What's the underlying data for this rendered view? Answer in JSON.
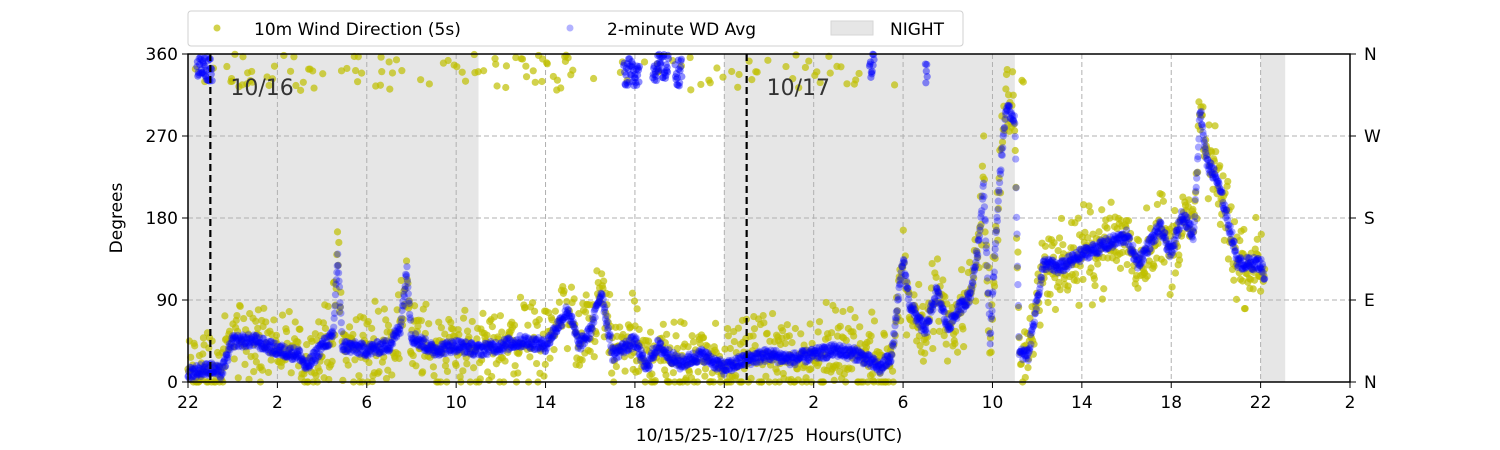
{
  "chart_data": {
    "type": "scatter",
    "xlabel": "10/15/25-10/17/25  Hours(UTC)",
    "ylabel": "Degrees",
    "x_units": "hours since 10/15 22:00 UTC",
    "xlim": [
      0,
      52
    ],
    "ylim": [
      0,
      360
    ],
    "x_ticks": [
      {
        "h": 0,
        "label": "22"
      },
      {
        "h": 4,
        "label": "2"
      },
      {
        "h": 8,
        "label": "6"
      },
      {
        "h": 12,
        "label": "10"
      },
      {
        "h": 16,
        "label": "14"
      },
      {
        "h": 20,
        "label": "18"
      },
      {
        "h": 24,
        "label": "22"
      },
      {
        "h": 28,
        "label": "2"
      },
      {
        "h": 32,
        "label": "6"
      },
      {
        "h": 36,
        "label": "10"
      },
      {
        "h": 40,
        "label": "14"
      },
      {
        "h": 44,
        "label": "18"
      },
      {
        "h": 48,
        "label": "22"
      },
      {
        "h": 52,
        "label": "2"
      }
    ],
    "y_ticks": [
      {
        "v": 0,
        "label": "0"
      },
      {
        "v": 90,
        "label": "90"
      },
      {
        "v": 180,
        "label": "180"
      },
      {
        "v": 270,
        "label": "270"
      },
      {
        "v": 360,
        "label": "360"
      }
    ],
    "y2_ticks": [
      {
        "v": 0,
        "label": "N"
      },
      {
        "v": 90,
        "label": "E"
      },
      {
        "v": 180,
        "label": "S"
      },
      {
        "v": 270,
        "label": "W"
      },
      {
        "v": 360,
        "label": "N"
      }
    ],
    "grid": true,
    "legend": {
      "placement": "top",
      "entries": [
        {
          "label": "10m Wind Direction (5s)",
          "color": "#bfbf00"
        },
        {
          "label": "2-minute WD Avg",
          "color": "#0000ff"
        },
        {
          "label": "NIGHT",
          "color": "#e6e6e6"
        }
      ]
    },
    "night_periods": [
      [
        0,
        13
      ],
      [
        24,
        37
      ],
      [
        48,
        49.1
      ]
    ],
    "date_markers": [
      {
        "h": 1,
        "label": "10/16"
      },
      {
        "h": 25,
        "label": "10/17"
      }
    ],
    "scatter_spread_deg": 28,
    "series": [
      {
        "name": "2-minute WD Avg",
        "trend": [
          [
            0,
            10
          ],
          [
            1,
            15
          ],
          [
            1.5,
            10
          ],
          [
            2,
            45
          ],
          [
            3,
            45
          ],
          [
            4,
            35
          ],
          [
            5,
            30
          ],
          [
            5.3,
            15
          ],
          [
            6,
            40
          ],
          [
            6.5,
            50
          ],
          [
            6.7,
            140
          ],
          [
            6.9,
            40
          ],
          [
            8,
            35
          ],
          [
            9,
            40
          ],
          [
            9.5,
            60
          ],
          [
            9.8,
            125
          ],
          [
            10,
            50
          ],
          [
            11,
            35
          ],
          [
            12,
            40
          ],
          [
            13,
            35
          ],
          [
            14,
            40
          ],
          [
            15,
            45
          ],
          [
            16,
            40
          ],
          [
            16.5,
            60
          ],
          [
            17,
            80
          ],
          [
            17.5,
            40
          ],
          [
            18,
            55
          ],
          [
            18.5,
            100
          ],
          [
            19,
            30
          ],
          [
            20,
            45
          ],
          [
            20.5,
            15
          ],
          [
            21,
            40
          ],
          [
            22,
            20
          ],
          [
            23,
            30
          ],
          [
            24,
            15
          ],
          [
            25,
            25
          ],
          [
            26,
            30
          ],
          [
            27,
            25
          ],
          [
            28,
            30
          ],
          [
            29,
            35
          ],
          [
            30,
            30
          ],
          [
            31,
            15
          ],
          [
            31.5,
            30
          ],
          [
            32,
            135
          ],
          [
            32.3,
            85
          ],
          [
            33,
            55
          ],
          [
            33.5,
            100
          ],
          [
            34,
            60
          ],
          [
            34.5,
            80
          ],
          [
            35,
            95
          ],
          [
            35.4,
            155
          ],
          [
            35.6,
            220
          ],
          [
            35.9,
            45
          ],
          [
            36,
            95
          ],
          [
            36.3,
            215
          ],
          [
            36.6,
            300
          ],
          [
            37,
            290
          ],
          [
            37.2,
            30
          ],
          [
            37.6,
            30
          ],
          [
            38,
            90
          ],
          [
            38.3,
            130
          ],
          [
            39,
            125
          ],
          [
            40,
            140
          ],
          [
            41,
            150
          ],
          [
            42,
            160
          ],
          [
            42.5,
            130
          ],
          [
            43,
            150
          ],
          [
            43.5,
            170
          ],
          [
            44,
            140
          ],
          [
            44.5,
            185
          ],
          [
            45,
            160
          ],
          [
            45.3,
            300
          ],
          [
            45.6,
            240
          ],
          [
            46,
            225
          ],
          [
            46.3,
            200
          ],
          [
            46.8,
            150
          ],
          [
            47,
            130
          ],
          [
            48,
            130
          ],
          [
            48.2,
            115
          ]
        ],
        "north_excursions": [
          [
            0.4,
            1.1,
            345
          ],
          [
            19.5,
            20.2,
            340
          ],
          [
            20.8,
            21.5,
            345
          ],
          [
            21.8,
            22.1,
            340
          ],
          [
            30.5,
            30.7,
            345
          ],
          [
            33,
            33.1,
            335
          ]
        ]
      }
    ]
  }
}
